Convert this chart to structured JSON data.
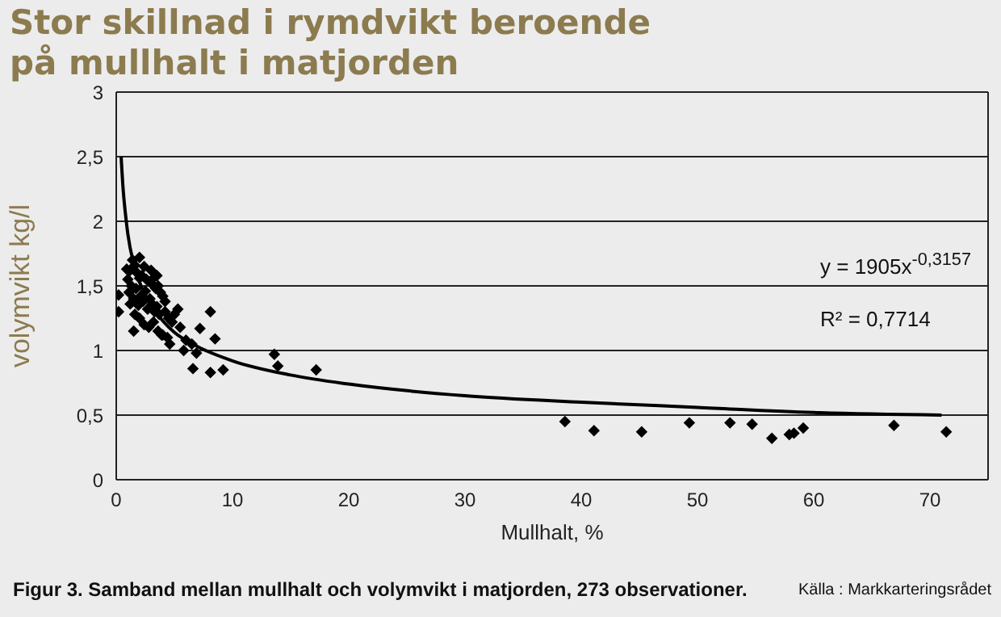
{
  "chart_data": {
    "type": "scatter",
    "title": "Stor skillnad i rymdvikt beroende\npå mullhalt i matjorden",
    "xlabel": "Mullhalt, %",
    "ylabel": "volymvikt kg/l",
    "annotations": [
      "y = 1905x$^{-0,3157}$",
      "R² = 0,7714",
      "Figur 3. Samband mellan mullhalt och volymvikt i matjorden, 273 observationer.",
      "Källa : Markkarteringsrådet"
    ],
    "xlim": [
      0,
      75
    ],
    "xticks": [
      0,
      10,
      20,
      30,
      40,
      50,
      60,
      70
    ],
    "ylim": [
      0,
      3
    ],
    "yticks": [
      0,
      {
        "value": 0.5,
        "label": "0,5"
      },
      1,
      {
        "value": 1.5,
        "label": "1,5"
      },
      2,
      {
        "value": 2.5,
        "label": "2,5"
      },
      3
    ],
    "grid": "y",
    "legend": false,
    "series": [
      {
        "color": "#000000",
        "marker": "diamond",
        "x": [
          0.2,
          0.2,
          0.9,
          1.5,
          1.0,
          1.2,
          1.4,
          1.6,
          1.8,
          2.0,
          2.2,
          2.4,
          2.6,
          3.0,
          3.2,
          3.4,
          3.6,
          3.8,
          4.0,
          1.1,
          1.3,
          1.5,
          1.7,
          1.9,
          2.1,
          2.3,
          2.5,
          2.7,
          2.9,
          3.1,
          3.3,
          3.5,
          3.7,
          4.2,
          4.5,
          4.8,
          5.0,
          1.2,
          1.6,
          2.0,
          2.4,
          2.8,
          3.2,
          3.6,
          4.0,
          4.4,
          5.5,
          6.0,
          6.5,
          2.0,
          3.0,
          3.5,
          4.2,
          5.3,
          7.2,
          8.1,
          8.5,
          6.6,
          8.1,
          9.2,
          5.8,
          6.9,
          4.6,
          3.9,
          13.6,
          13.9,
          17.2,
          38.6,
          41.1,
          45.2,
          49.3,
          52.8,
          54.7,
          56.4,
          57.9,
          58.3,
          59.1,
          66.9,
          71.4
        ],
        "values": [
          1.43,
          1.3,
          1.63,
          1.15,
          1.55,
          1.62,
          1.7,
          1.66,
          1.6,
          1.72,
          1.58,
          1.65,
          1.55,
          1.52,
          1.56,
          1.48,
          1.5,
          1.45,
          1.42,
          1.45,
          1.5,
          1.4,
          1.48,
          1.35,
          1.42,
          1.38,
          1.46,
          1.32,
          1.4,
          1.36,
          1.3,
          1.34,
          1.28,
          1.3,
          1.25,
          1.22,
          1.28,
          1.36,
          1.28,
          1.25,
          1.2,
          1.18,
          1.22,
          1.15,
          1.12,
          1.1,
          1.18,
          1.08,
          1.05,
          1.56,
          1.62,
          1.58,
          1.38,
          1.32,
          1.17,
          1.3,
          1.09,
          0.86,
          0.83,
          0.85,
          1.0,
          0.98,
          1.05,
          1.12,
          0.97,
          0.88,
          0.85,
          0.45,
          0.38,
          0.37,
          0.44,
          0.44,
          0.43,
          0.32,
          0.35,
          0.36,
          0.4,
          0.42,
          0.37
        ]
      },
      {
        "type": "line",
        "color": "#000000",
        "marker": "none",
        "x": [
          0.42,
          0.6,
          0.8,
          1,
          1.5,
          2,
          3,
          4,
          5,
          7,
          10,
          15,
          20,
          30,
          40,
          50,
          60,
          71
        ],
        "values": [
          2.5,
          2.24,
          2.05,
          1.9,
          1.67,
          1.53,
          1.35,
          1.23,
          1.14,
          1.03,
          0.92,
          0.81,
          0.74,
          0.65,
          0.6,
          0.56,
          0.52,
          0.5
        ]
      }
    ]
  }
}
